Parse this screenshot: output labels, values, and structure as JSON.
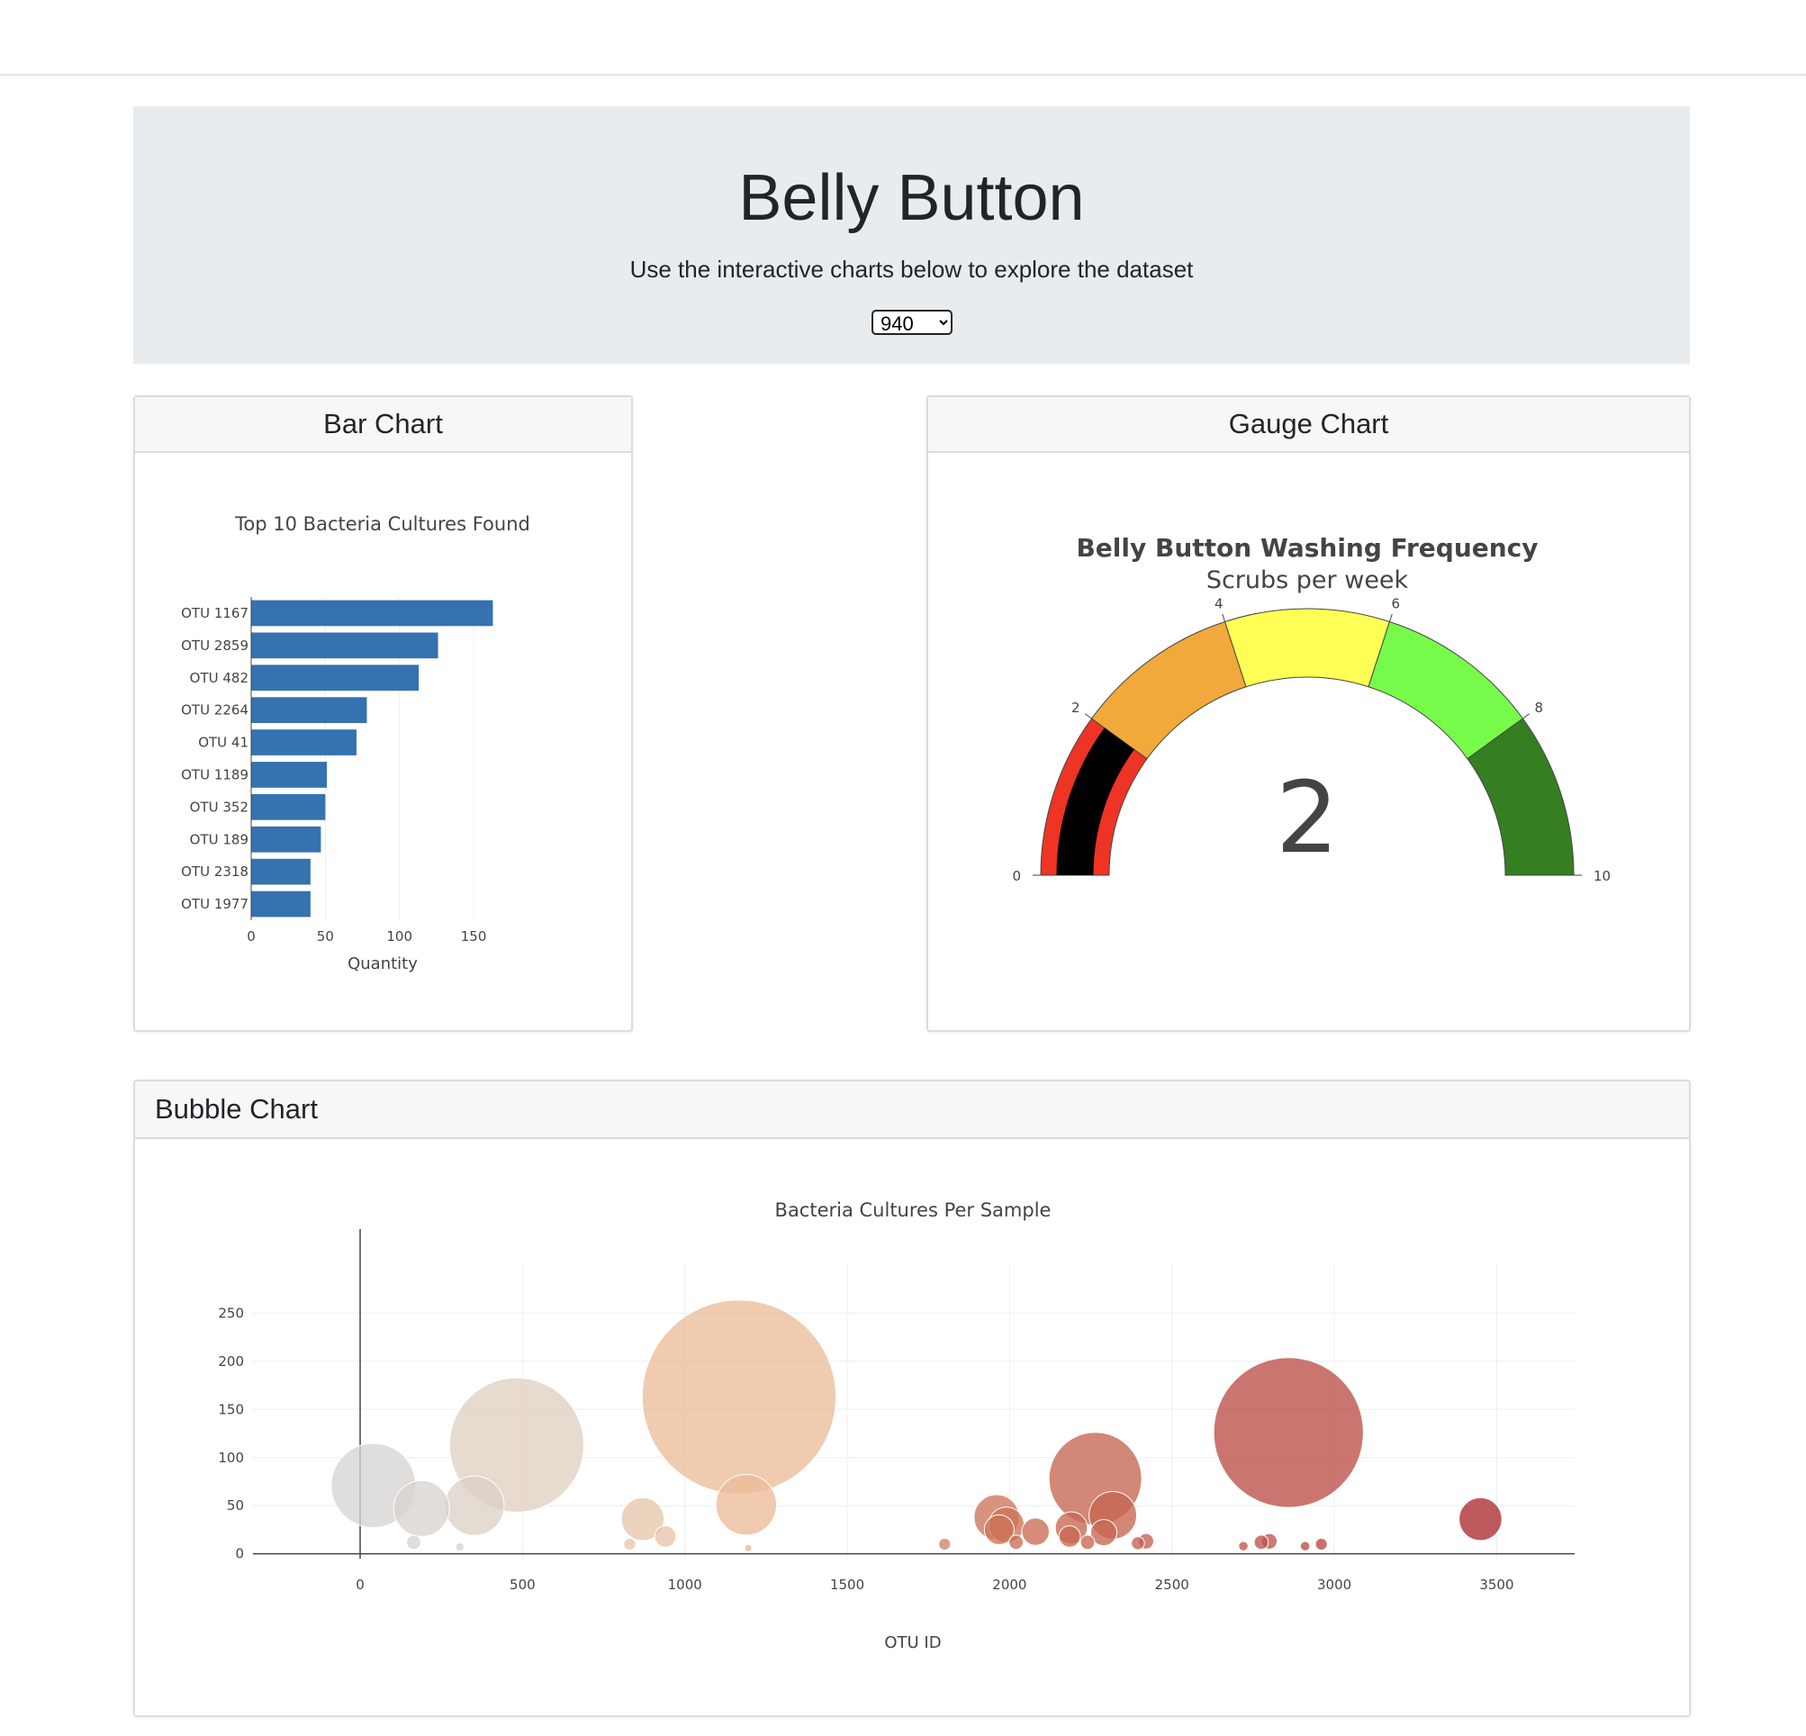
{
  "header": {
    "title": "Belly Button",
    "subtitle": "Use the interactive charts below to explore the dataset",
    "selected_sample": "940"
  },
  "cards": {
    "bar": "Bar Chart",
    "gauge": "Gauge Chart",
    "bubble": "Bubble Chart"
  },
  "chart_data": [
    {
      "type": "bar",
      "orientation": "horizontal",
      "title": "Top 10 Bacteria Cultures Found",
      "xlabel": "Quantity",
      "xlim": [
        0,
        170
      ],
      "xticks": [
        0,
        50,
        100,
        150
      ],
      "categories": [
        "OTU 1167",
        "OTU 2859",
        "OTU 482",
        "OTU 2264",
        "OTU 41",
        "OTU 1189",
        "OTU 352",
        "OTU 189",
        "OTU 2318",
        "OTU 1977"
      ],
      "values": [
        163,
        126,
        113,
        78,
        71,
        51,
        50,
        47,
        40,
        40
      ],
      "color": "#3572b0"
    },
    {
      "type": "gauge",
      "title": "Belly Button Washing Frequency",
      "subtitle": "Scrubs per week",
      "value": 2,
      "range": [
        0,
        10
      ],
      "ticks": [
        0,
        2,
        4,
        6,
        8,
        10
      ],
      "bar_color": "#000000",
      "steps": [
        {
          "range": [
            0,
            2
          ],
          "color": "#ee3424"
        },
        {
          "range": [
            2,
            4
          ],
          "color": "#f2a93b"
        },
        {
          "range": [
            4,
            6
          ],
          "color": "#ffff55"
        },
        {
          "range": [
            6,
            8
          ],
          "color": "#77fb4b"
        },
        {
          "range": [
            8,
            10
          ],
          "color": "#367e22"
        }
      ]
    },
    {
      "type": "scatter",
      "title": "Bacteria Cultures Per Sample",
      "xlabel": "OTU ID",
      "xlim": [
        -330,
        3740
      ],
      "ylim": [
        -5,
        285
      ],
      "xticks": [
        0,
        500,
        1000,
        1500,
        2000,
        2500,
        3000,
        3500
      ],
      "yticks": [
        0,
        50,
        100,
        150,
        200,
        250
      ],
      "colorscale": "Earth",
      "points": [
        {
          "x": 41,
          "y": 71
        },
        {
          "x": 189,
          "y": 47
        },
        {
          "x": 352,
          "y": 50
        },
        {
          "x": 482,
          "y": 113
        },
        {
          "x": 165,
          "y": 12
        },
        {
          "x": 307,
          "y": 7
        },
        {
          "x": 870,
          "y": 36
        },
        {
          "x": 830,
          "y": 10
        },
        {
          "x": 940,
          "y": 18
        },
        {
          "x": 1167,
          "y": 163
        },
        {
          "x": 1189,
          "y": 51
        },
        {
          "x": 1195,
          "y": 6
        },
        {
          "x": 1800,
          "y": 10
        },
        {
          "x": 1960,
          "y": 38
        },
        {
          "x": 1968,
          "y": 25
        },
        {
          "x": 1990,
          "y": 30
        },
        {
          "x": 2020,
          "y": 12
        },
        {
          "x": 2080,
          "y": 23
        },
        {
          "x": 2190,
          "y": 27
        },
        {
          "x": 2185,
          "y": 18
        },
        {
          "x": 2240,
          "y": 12
        },
        {
          "x": 2264,
          "y": 78
        },
        {
          "x": 2290,
          "y": 22
        },
        {
          "x": 2318,
          "y": 40
        },
        {
          "x": 2395,
          "y": 11
        },
        {
          "x": 2420,
          "y": 13
        },
        {
          "x": 2720,
          "y": 8
        },
        {
          "x": 2775,
          "y": 12
        },
        {
          "x": 2800,
          "y": 13
        },
        {
          "x": 2859,
          "y": 126
        },
        {
          "x": 2910,
          "y": 8
        },
        {
          "x": 2960,
          "y": 10
        },
        {
          "x": 3450,
          "y": 36
        }
      ]
    }
  ]
}
